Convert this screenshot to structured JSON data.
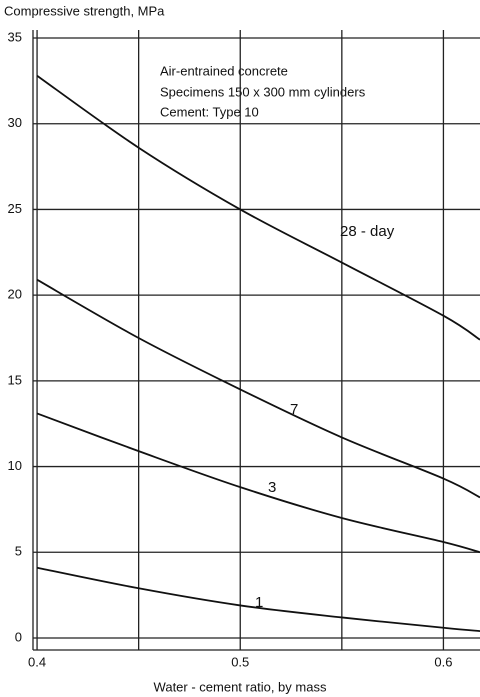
{
  "chart_data": {
    "type": "line",
    "y_label": "Compressive strength, MPa",
    "x_label": "Water - cement ratio, by mass",
    "annotations": [
      "Air-entrained concrete",
      "Specimens  150 x 300 mm cylinders",
      "Cement:  Type 10"
    ],
    "x": [
      0.4,
      0.45,
      0.5,
      0.55,
      0.6,
      0.618
    ],
    "series": [
      {
        "name": "28 - day",
        "color": "#111111",
        "values": [
          32.8,
          28.6,
          25.0,
          21.9,
          18.8,
          17.4
        ]
      },
      {
        "name": "7",
        "color": "#111111",
        "values": [
          20.9,
          17.5,
          14.5,
          11.7,
          9.3,
          8.2
        ]
      },
      {
        "name": "3",
        "color": "#111111",
        "values": [
          13.1,
          10.9,
          8.8,
          7.0,
          5.6,
          5.0
        ]
      },
      {
        "name": "1",
        "color": "#111111",
        "values": [
          4.1,
          2.9,
          1.9,
          1.2,
          0.6,
          0.4
        ]
      }
    ],
    "xlim": [
      0.398,
      0.618
    ],
    "ylim": [
      0,
      35
    ],
    "xticks": [
      0.4,
      0.5,
      0.6
    ],
    "xminor": [
      0.45,
      0.55
    ],
    "yticks": [
      0,
      5,
      10,
      15,
      20,
      25,
      30,
      35
    ],
    "grid": true
  }
}
